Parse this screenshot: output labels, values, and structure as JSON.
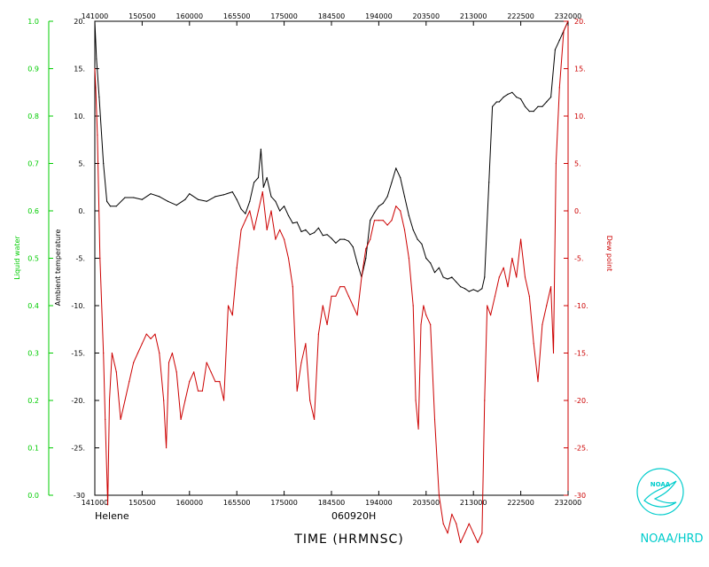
{
  "chart_data": {
    "type": "line",
    "xlabel": "TIME (HRMNSC)",
    "storm_name": "Helene",
    "date_code": "060920H",
    "org_label": "NOAA/HRD",
    "logo_text": "NOAA",
    "x_ticks": [
      "141000",
      "150500",
      "160000",
      "165500",
      "175000",
      "184500",
      "194000",
      "203500",
      "213000",
      "222500",
      "232000"
    ],
    "x_range": [
      "141000",
      "232000"
    ],
    "y_left_outer": {
      "label": "Liquid water",
      "ticks": [
        "0.0",
        "0.1",
        "0.2",
        "0.3",
        "0.4",
        "0.5",
        "0.6",
        "0.7",
        "0.8",
        "0.9",
        "1.0"
      ],
      "range": [
        0.0,
        1.0
      ],
      "color": "#00cc00"
    },
    "y_left_inner": {
      "label": "Ambient temperature",
      "ticks": [
        "-30",
        "-25.",
        "-20.",
        "-15.",
        "-10.",
        "-5.",
        "0.",
        "5.",
        "10.",
        "15.",
        "20."
      ],
      "range": [
        -30,
        20
      ],
      "color": "#000000"
    },
    "y_right": {
      "label": "Dew point",
      "ticks": [
        "-30",
        "-25.",
        "-20.",
        "-15.",
        "-10.",
        "-5.",
        "0.",
        "5.",
        "10.",
        "15.",
        "20."
      ],
      "range": [
        -30,
        20
      ],
      "color": "#cc0000"
    },
    "series": [
      {
        "name": "Ambient temperature",
        "color": "#000000",
        "points": [
          [
            "141000",
            20.0
          ],
          [
            "141200",
            16.0
          ],
          [
            "141500",
            12.0
          ],
          [
            "142000",
            5.0
          ],
          [
            "142400",
            1.0
          ],
          [
            "142800",
            0.5
          ],
          [
            "143500",
            0.5
          ],
          [
            "144500",
            1.4
          ],
          [
            "145500",
            1.4
          ],
          [
            "150500",
            1.2
          ],
          [
            "151500",
            1.8
          ],
          [
            "152500",
            1.5
          ],
          [
            "153500",
            1.0
          ],
          [
            "154500",
            0.6
          ],
          [
            "155500",
            1.2
          ],
          [
            "160000",
            1.8
          ],
          [
            "161000",
            1.2
          ],
          [
            "162000",
            1.0
          ],
          [
            "163000",
            1.5
          ],
          [
            "164000",
            1.7
          ],
          [
            "165000",
            2.0
          ],
          [
            "165500",
            1.2
          ],
          [
            "170000",
            0.2
          ],
          [
            "170500",
            -0.3
          ],
          [
            "171000",
            1.0
          ],
          [
            "171500",
            3.0
          ],
          [
            "172000",
            3.5
          ],
          [
            "172300",
            6.5
          ],
          [
            "172600",
            2.5
          ],
          [
            "173000",
            3.5
          ],
          [
            "173500",
            1.5
          ],
          [
            "174000",
            1.0
          ],
          [
            "174500",
            0.0
          ],
          [
            "175000",
            0.5
          ],
          [
            "175500",
            -0.5
          ],
          [
            "180000",
            -1.3
          ],
          [
            "180500",
            -1.2
          ],
          [
            "181000",
            -2.2
          ],
          [
            "181500",
            -2.0
          ],
          [
            "182000",
            -2.5
          ],
          [
            "182500",
            -2.3
          ],
          [
            "183000",
            -1.8
          ],
          [
            "183500",
            -2.6
          ],
          [
            "184000",
            -2.5
          ],
          [
            "184500",
            -2.9
          ],
          [
            "185000",
            -3.4
          ],
          [
            "185500",
            -3.0
          ],
          [
            "190000",
            -3.0
          ],
          [
            "190500",
            -3.2
          ],
          [
            "191000",
            -3.8
          ],
          [
            "191500",
            -5.5
          ],
          [
            "192000",
            -7.0
          ],
          [
            "192500",
            -5.0
          ],
          [
            "193000",
            -1.0
          ],
          [
            "193500",
            -0.2
          ],
          [
            "194000",
            0.5
          ],
          [
            "194500",
            0.8
          ],
          [
            "195000",
            1.5
          ],
          [
            "195500",
            3.0
          ],
          [
            "200000",
            4.5
          ],
          [
            "200500",
            3.5
          ],
          [
            "201000",
            1.5
          ],
          [
            "201500",
            -0.5
          ],
          [
            "202000",
            -2.0
          ],
          [
            "202500",
            -3.0
          ],
          [
            "203000",
            -3.5
          ],
          [
            "203500",
            -5.0
          ],
          [
            "204000",
            -5.5
          ],
          [
            "204500",
            -6.5
          ],
          [
            "205000",
            -6.0
          ],
          [
            "205500",
            -7.0
          ],
          [
            "210000",
            -7.2
          ],
          [
            "210500",
            -7.0
          ],
          [
            "211000",
            -7.5
          ],
          [
            "211500",
            -8.0
          ],
          [
            "212000",
            -8.2
          ],
          [
            "212500",
            -8.5
          ],
          [
            "213000",
            -8.3
          ],
          [
            "213500",
            -8.5
          ],
          [
            "214000",
            -8.2
          ],
          [
            "214300",
            -7.0
          ],
          [
            "214800",
            3.0
          ],
          [
            "215200",
            11.0
          ],
          [
            "215700",
            11.5
          ],
          [
            "220000",
            11.5
          ],
          [
            "220500",
            12.0
          ],
          [
            "221000",
            12.3
          ],
          [
            "221500",
            12.5
          ],
          [
            "222000",
            12.0
          ],
          [
            "222500",
            11.8
          ],
          [
            "223000",
            11.0
          ],
          [
            "223500",
            10.5
          ],
          [
            "224000",
            10.5
          ],
          [
            "224500",
            11.0
          ],
          [
            "225000",
            11.0
          ],
          [
            "225500",
            11.5
          ],
          [
            "230000",
            12.0
          ],
          [
            "230500",
            17.0
          ],
          [
            "231000",
            18.0
          ],
          [
            "231500",
            19.0
          ],
          [
            "232000",
            20.0
          ]
        ]
      },
      {
        "name": "Dew point",
        "color": "#cc0000",
        "points": [
          [
            "141000",
            15.0
          ],
          [
            "141100",
            13.0
          ],
          [
            "141300",
            8.0
          ],
          [
            "141600",
            -5.0
          ],
          [
            "142000",
            -15.0
          ],
          [
            "142200",
            -22.0
          ],
          [
            "142500",
            -31.0
          ],
          [
            "142700",
            -20.0
          ],
          [
            "143000",
            -15.0
          ],
          [
            "143500",
            -17.0
          ],
          [
            "144000",
            -22.0
          ],
          [
            "144500",
            -20.0
          ],
          [
            "145000",
            -18.0
          ],
          [
            "145500",
            -16.0
          ],
          [
            "150000",
            -15.0
          ],
          [
            "150500",
            -14.0
          ],
          [
            "151000",
            -13.0
          ],
          [
            "151500",
            -13.5
          ],
          [
            "152000",
            -13.0
          ],
          [
            "152500",
            -15.0
          ],
          [
            "153000",
            -20.0
          ],
          [
            "153300",
            -25.0
          ],
          [
            "153600",
            -16.0
          ],
          [
            "154000",
            -15.0
          ],
          [
            "154500",
            -17.0
          ],
          [
            "155000",
            -22.0
          ],
          [
            "155500",
            -20.0
          ],
          [
            "160000",
            -18.0
          ],
          [
            "160500",
            -17.0
          ],
          [
            "161000",
            -19.0
          ],
          [
            "161500",
            -19.0
          ],
          [
            "162000",
            -16.0
          ],
          [
            "162500",
            -17.0
          ],
          [
            "163000",
            -18.0
          ],
          [
            "163500",
            -18.0
          ],
          [
            "164000",
            -20.0
          ],
          [
            "164500",
            -10.0
          ],
          [
            "165000",
            -11.0
          ],
          [
            "165500",
            -6.0
          ],
          [
            "170000",
            -2.0
          ],
          [
            "170500",
            -1.0
          ],
          [
            "171000",
            0.0
          ],
          [
            "171500",
            -2.0
          ],
          [
            "172000",
            0.0
          ],
          [
            "172500",
            2.0
          ],
          [
            "173000",
            -2.0
          ],
          [
            "173500",
            0.0
          ],
          [
            "174000",
            -3.0
          ],
          [
            "174500",
            -2.0
          ],
          [
            "175000",
            -3.0
          ],
          [
            "175500",
            -5.0
          ],
          [
            "180000",
            -8.0
          ],
          [
            "180500",
            -19.0
          ],
          [
            "181000",
            -16.0
          ],
          [
            "181500",
            -14.0
          ],
          [
            "182000",
            -20.0
          ],
          [
            "182500",
            -22.0
          ],
          [
            "183000",
            -13.0
          ],
          [
            "183500",
            -10.0
          ],
          [
            "184000",
            -12.0
          ],
          [
            "184500",
            -9.0
          ],
          [
            "185000",
            -9.0
          ],
          [
            "185500",
            -8.0
          ],
          [
            "190000",
            -8.0
          ],
          [
            "190500",
            -9.0
          ],
          [
            "191000",
            -10.0
          ],
          [
            "191500",
            -11.0
          ],
          [
            "192000",
            -7.0
          ],
          [
            "192500",
            -4.0
          ],
          [
            "193000",
            -3.0
          ],
          [
            "193500",
            -1.0
          ],
          [
            "194000",
            -1.0
          ],
          [
            "194500",
            -1.0
          ],
          [
            "195000",
            -1.5
          ],
          [
            "195500",
            -1.0
          ],
          [
            "200000",
            0.5
          ],
          [
            "200500",
            0.0
          ],
          [
            "201000",
            -2.0
          ],
          [
            "201500",
            -5.0
          ],
          [
            "202000",
            -10.0
          ],
          [
            "202300",
            -20.0
          ],
          [
            "202600",
            -23.0
          ],
          [
            "202900",
            -12.0
          ],
          [
            "203200",
            -10.0
          ],
          [
            "203500",
            -11.0
          ],
          [
            "204000",
            -12.0
          ],
          [
            "204500",
            -22.0
          ],
          [
            "205000",
            -30.0
          ],
          [
            "205500",
            -33.0
          ],
          [
            "210000",
            -34.0
          ],
          [
            "210500",
            -32.0
          ],
          [
            "211000",
            -33.0
          ],
          [
            "211500",
            -35.0
          ],
          [
            "212000",
            -34.0
          ],
          [
            "212500",
            -33.0
          ],
          [
            "213000",
            -34.0
          ],
          [
            "213500",
            -35.0
          ],
          [
            "214000",
            -34.0
          ],
          [
            "214300",
            -20.0
          ],
          [
            "214600",
            -10.0
          ],
          [
            "215000",
            -11.0
          ],
          [
            "215500",
            -9.0
          ],
          [
            "220000",
            -7.0
          ],
          [
            "220500",
            -6.0
          ],
          [
            "221000",
            -8.0
          ],
          [
            "221500",
            -5.0
          ],
          [
            "222000",
            -7.0
          ],
          [
            "222500",
            -3.0
          ],
          [
            "223000",
            -7.0
          ],
          [
            "223500",
            -9.0
          ],
          [
            "224000",
            -14.0
          ],
          [
            "224500",
            -18.0
          ],
          [
            "225000",
            -12.0
          ],
          [
            "225500",
            -10.0
          ],
          [
            "230000",
            -8.0
          ],
          [
            "230300",
            -15.0
          ],
          [
            "230600",
            5.0
          ],
          [
            "231000",
            13.0
          ],
          [
            "231500",
            19.0
          ],
          [
            "232000",
            20.0
          ]
        ]
      }
    ],
    "grid": false
  }
}
